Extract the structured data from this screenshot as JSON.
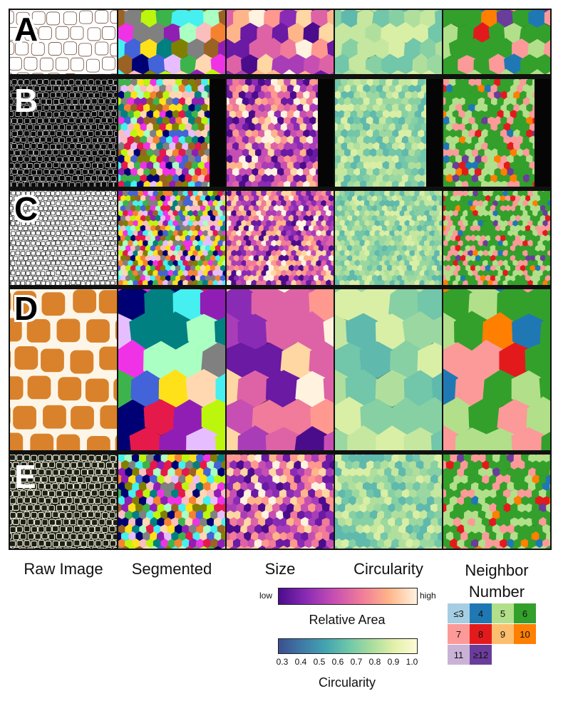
{
  "rows": [
    {
      "label": "A",
      "label_color": "#000000"
    },
    {
      "label": "B",
      "label_color": "#ffffff"
    },
    {
      "label": "C",
      "label_color": "#000000"
    },
    {
      "label": "D",
      "label_color": "#000000"
    },
    {
      "label": "E",
      "label_color": "#ffffff"
    }
  ],
  "columns": [
    {
      "label": "Raw Image"
    },
    {
      "label": "Segmented"
    },
    {
      "label": "Size"
    },
    {
      "label": "Circularity"
    },
    {
      "label_line1": "Neighbor",
      "label_line2": "Number"
    }
  ],
  "size_legend": {
    "low": "low",
    "high": "high",
    "title": "Relative Area",
    "colors": [
      "#4b0c8c",
      "#8a2bb5",
      "#c74fb3",
      "#f07b9a",
      "#ffb58a",
      "#fff3e0"
    ]
  },
  "circularity_legend": {
    "ticks": [
      "0.3",
      "0.4",
      "0.5",
      "0.6",
      "0.7",
      "0.8",
      "0.9",
      "1.0"
    ],
    "title": "Circularity",
    "colors": [
      "#3b4f8f",
      "#3f79a6",
      "#42a3b0",
      "#6cc6a9",
      "#a7dc9e",
      "#e2f0a8",
      "#fdfbd8"
    ]
  },
  "neighbor_legend": [
    {
      "label": "≤3",
      "color": "#a6cee3"
    },
    {
      "label": "4",
      "color": "#1f78b4"
    },
    {
      "label": "5",
      "color": "#b2df8a"
    },
    {
      "label": "6",
      "color": "#33a02c"
    },
    {
      "label": "7",
      "color": "#fb9a99"
    },
    {
      "label": "8",
      "color": "#e31a1c"
    },
    {
      "label": "9",
      "color": "#fdbf6f"
    },
    {
      "label": "10",
      "color": "#ff7f00"
    },
    {
      "label": "11",
      "color": "#cab2d6"
    },
    {
      "label": "≥12",
      "color": "#6a3d9a"
    }
  ],
  "palettes": {
    "segmented": [
      "#e6194b",
      "#3cb44b",
      "#ffe119",
      "#4363d8",
      "#f58231",
      "#911eb4",
      "#46f0f0",
      "#f032e6",
      "#bcf60c",
      "#fabebe",
      "#008080",
      "#e6beff",
      "#9a6324",
      "#aaffc3",
      "#808000",
      "#ffd8b1",
      "#000075",
      "#808080"
    ],
    "size": [
      "#4b0c8c",
      "#6a1aa3",
      "#8a2bb5",
      "#a93db8",
      "#c74fb3",
      "#de63a6",
      "#f07b9a",
      "#ff988f",
      "#ffb58a",
      "#ffd7a3",
      "#fff3e0"
    ],
    "circularity": [
      "#5fb9ad",
      "#72c6a9",
      "#86d0a4",
      "#9bd8a1",
      "#b0df9d",
      "#c6e79f",
      "#d9efa6"
    ],
    "neighbor": [
      "#33a02c",
      "#b2df8a",
      "#fb9a99",
      "#e31a1c",
      "#ff7f00",
      "#1f78b4",
      "#6a3d9a"
    ],
    "raw": {
      "A": [
        "#ffffff",
        "#6b4a3a"
      ],
      "B": [
        "#0a0a0a",
        "#dcdcdc"
      ],
      "C": [
        "#ffffff",
        "#222222"
      ],
      "D": [
        "#fdf6e8",
        "#d9822b"
      ],
      "E": [
        "#1f2418",
        "#f3eddc"
      ]
    }
  }
}
